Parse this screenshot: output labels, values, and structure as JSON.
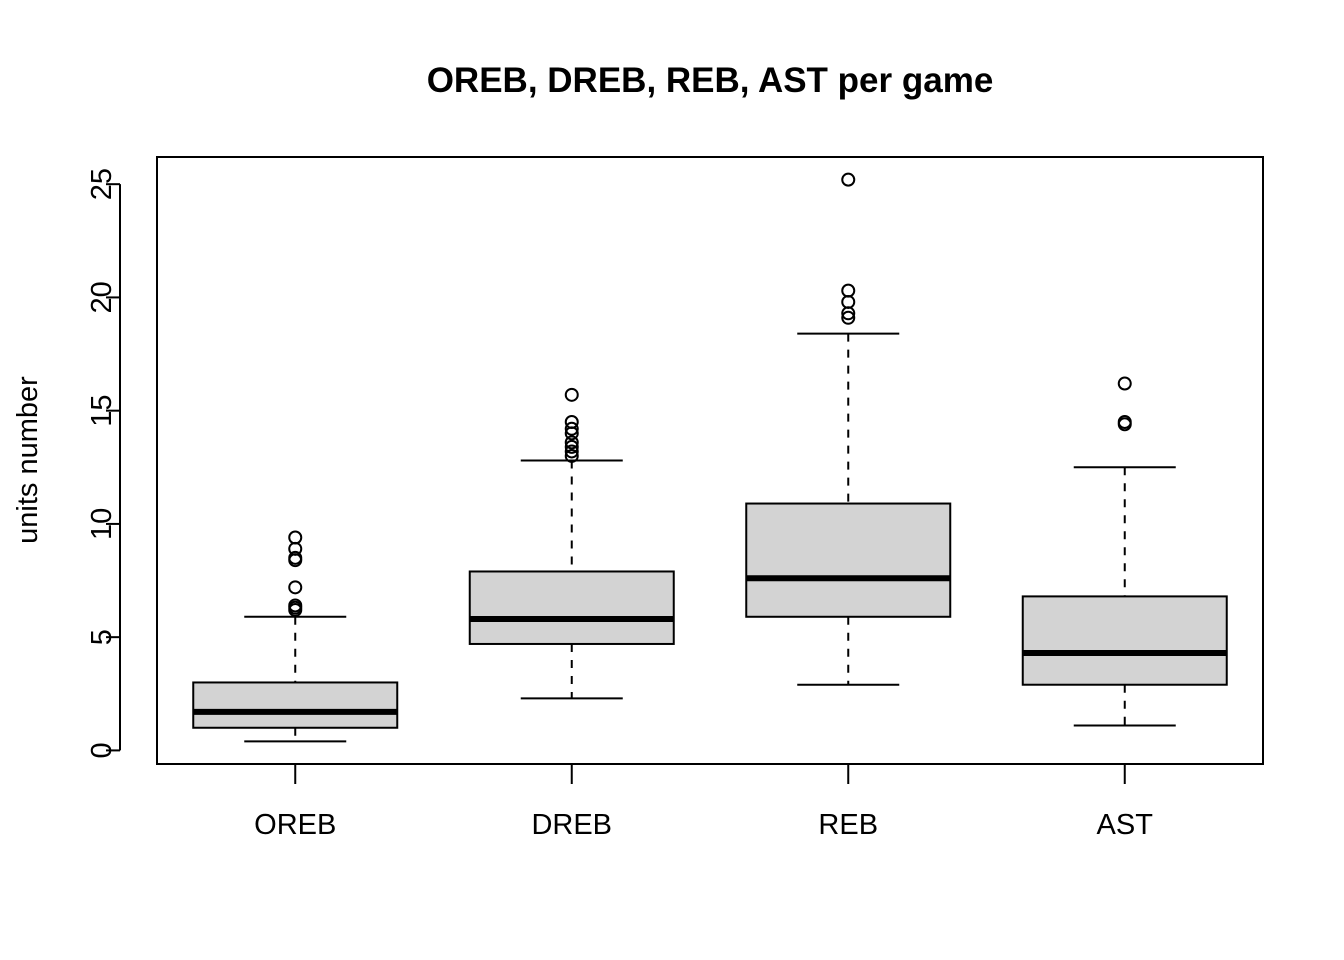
{
  "chart_data": {
    "type": "boxplot",
    "title": "OREB, DREB, REB, AST per game",
    "xlabel": "",
    "ylabel": "units number",
    "ylim": [
      -0.6,
      26.2
    ],
    "yticks": [
      0,
      5,
      10,
      15,
      20,
      25
    ],
    "grid": false,
    "box_color": "#d3d3d3",
    "categories": [
      "OREB",
      "DREB",
      "REB",
      "AST"
    ],
    "boxes": [
      {
        "name": "OREB",
        "whisker_low": 0.4,
        "q1": 1.0,
        "median": 1.7,
        "q3": 3.0,
        "whisker_high": 5.9,
        "outliers": [
          6.2,
          6.3,
          6.4,
          7.2,
          8.4,
          8.5,
          8.9,
          9.4
        ]
      },
      {
        "name": "DREB",
        "whisker_low": 2.3,
        "q1": 4.7,
        "median": 5.8,
        "q3": 7.9,
        "whisker_high": 12.8,
        "outliers": [
          13.0,
          13.2,
          13.4,
          13.6,
          14.0,
          14.2,
          14.5,
          15.7
        ]
      },
      {
        "name": "REB",
        "whisker_low": 2.9,
        "q1": 5.9,
        "median": 7.6,
        "q3": 10.9,
        "whisker_high": 18.4,
        "outliers": [
          19.1,
          19.3,
          19.8,
          20.3,
          25.2
        ]
      },
      {
        "name": "AST",
        "whisker_low": 1.1,
        "q1": 2.9,
        "median": 4.3,
        "q3": 6.8,
        "whisker_high": 12.5,
        "outliers": [
          14.4,
          14.5,
          16.2
        ]
      }
    ]
  }
}
